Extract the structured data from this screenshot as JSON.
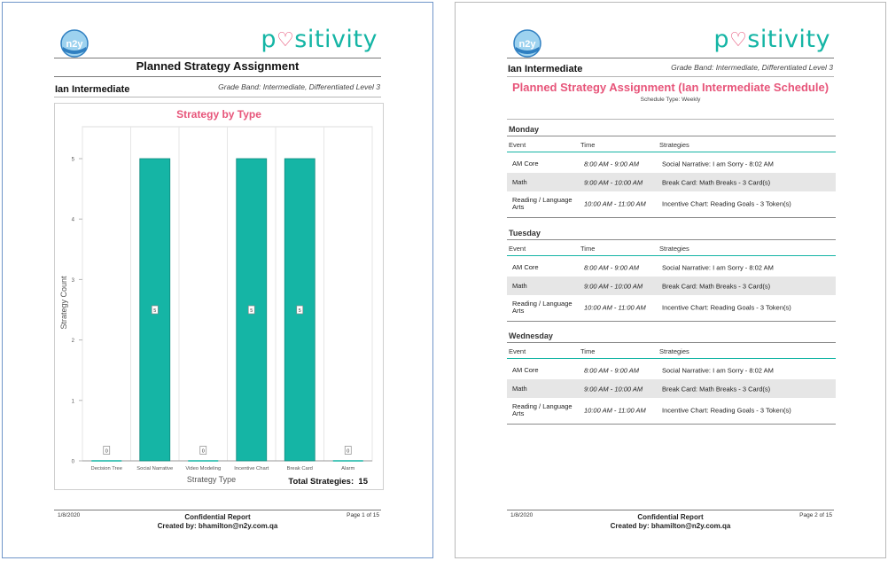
{
  "brand": {
    "n2y_logo_text": "n2y",
    "positivity_before_heart": "p",
    "positivity_heart": "♡",
    "positivity_after_heart": "sitivity",
    "teal": "#15b5a5",
    "pink": "#e7557a"
  },
  "page1": {
    "title": "Planned Strategy Assignment",
    "student": "Ian Intermediate",
    "grade_band": "Grade Band: Intermediate, Differentiated Level 3",
    "total_label": "Total Strategies:",
    "total_value": "15",
    "footer": {
      "date": "1/8/2020",
      "confidential": "Confidential Report",
      "created_by": "Created by: bhamilton@n2y.com.qa",
      "page": "Page 1 of 15"
    }
  },
  "chart_data": {
    "type": "bar",
    "title": "Strategy by Type",
    "xlabel": "Strategy Type",
    "ylabel": "Strategy Count",
    "categories": [
      "Decision Tree",
      "Social Narrative",
      "Video Modeling",
      "Incentive Chart",
      "Break Card",
      "Alarm"
    ],
    "values": [
      0,
      5,
      0,
      5,
      5,
      0
    ],
    "ylim": [
      0,
      5
    ],
    "yticks": [
      "0",
      "1",
      "2",
      "3",
      "4",
      "5"
    ],
    "bar_color": "#15b5a5",
    "grid": "vertical gridlines",
    "legend": "none"
  },
  "page2": {
    "student": "Ian Intermediate",
    "grade_band": "Grade Band: Intermediate, Differentiated Level 3",
    "title": "Planned Strategy Assignment (Ian Intermediate Schedule)",
    "subtitle": "Schedule Type: Weekly",
    "headers": {
      "event": "Event",
      "time": "Time",
      "strategies": "Strategies"
    },
    "days": [
      {
        "name": "Monday",
        "rows": [
          {
            "event": "AM Core",
            "time": "8:00 AM - 9:00 AM",
            "strategy": "Social Narrative: I am Sorry  - 8:02 AM"
          },
          {
            "event": "Math",
            "time": "9:00 AM - 10:00 AM",
            "strategy": "Break Card: Math Breaks - 3 Card(s)"
          },
          {
            "event": "Reading / Language Arts",
            "time": "10:00 AM - 11:00 AM",
            "strategy": "Incentive Chart: Reading Goals - 3 Token(s)"
          }
        ]
      },
      {
        "name": "Tuesday",
        "rows": [
          {
            "event": "AM Core",
            "time": "8:00 AM - 9:00 AM",
            "strategy": "Social Narrative: I am Sorry  - 8:02 AM"
          },
          {
            "event": "Math",
            "time": "9:00 AM - 10:00 AM",
            "strategy": "Break Card: Math Breaks - 3 Card(s)"
          },
          {
            "event": "Reading / Language Arts",
            "time": "10:00 AM - 11:00 AM",
            "strategy": "Incentive Chart: Reading Goals - 3 Token(s)"
          }
        ]
      },
      {
        "name": "Wednesday",
        "rows": [
          {
            "event": "AM Core",
            "time": "8:00 AM - 9:00 AM",
            "strategy": "Social Narrative: I am Sorry  - 8:02 AM"
          },
          {
            "event": "Math",
            "time": "9:00 AM - 10:00 AM",
            "strategy": "Break Card: Math Breaks - 3 Card(s)"
          },
          {
            "event": "Reading / Language Arts",
            "time": "10:00 AM - 11:00 AM",
            "strategy": "Incentive Chart: Reading Goals - 3 Token(s)"
          }
        ]
      }
    ],
    "footer": {
      "date": "1/8/2020",
      "confidential": "Confidential Report",
      "created_by": "Created by: bhamilton@n2y.com.qa",
      "page": "Page 2 of 15"
    }
  }
}
